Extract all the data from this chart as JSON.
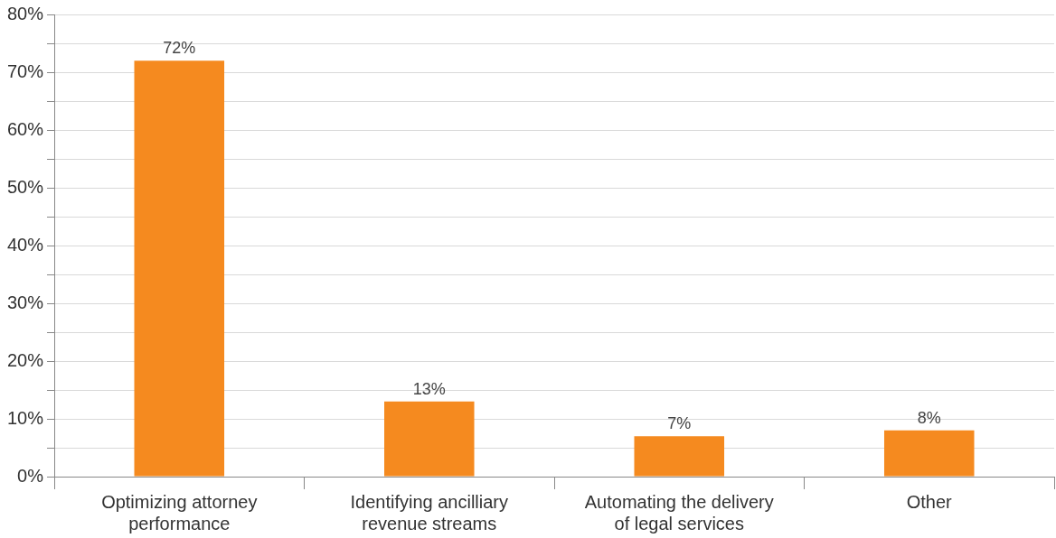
{
  "chart_data": {
    "type": "bar",
    "categories": [
      "Optimizing attorney performance",
      "Identifying ancilliary revenue streams",
      "Automating the delivery of legal services",
      "Other"
    ],
    "values": [
      72,
      13,
      7,
      8
    ],
    "value_labels": [
      "72%",
      "13%",
      "7%",
      "8%"
    ],
    "color": "#f58a1f",
    "ylim": [
      0,
      80
    ],
    "yticks": [
      {
        "value": 0,
        "label": "0%"
      },
      {
        "value": 5,
        "label": null
      },
      {
        "value": 10,
        "label": "10%"
      },
      {
        "value": 15,
        "label": null
      },
      {
        "value": 20,
        "label": "20%"
      },
      {
        "value": 25,
        "label": null
      },
      {
        "value": 30,
        "label": "30%"
      },
      {
        "value": 35,
        "label": null
      },
      {
        "value": 40,
        "label": "40%"
      },
      {
        "value": 45,
        "label": null
      },
      {
        "value": 50,
        "label": "50%"
      },
      {
        "value": 55,
        "label": null
      },
      {
        "value": 60,
        "label": "60%"
      },
      {
        "value": 65,
        "label": null
      },
      {
        "value": 70,
        "label": "70%"
      },
      {
        "value": 75,
        "label": null
      },
      {
        "value": 80,
        "label": "80%"
      }
    ],
    "grid": "y",
    "legend": false
  }
}
